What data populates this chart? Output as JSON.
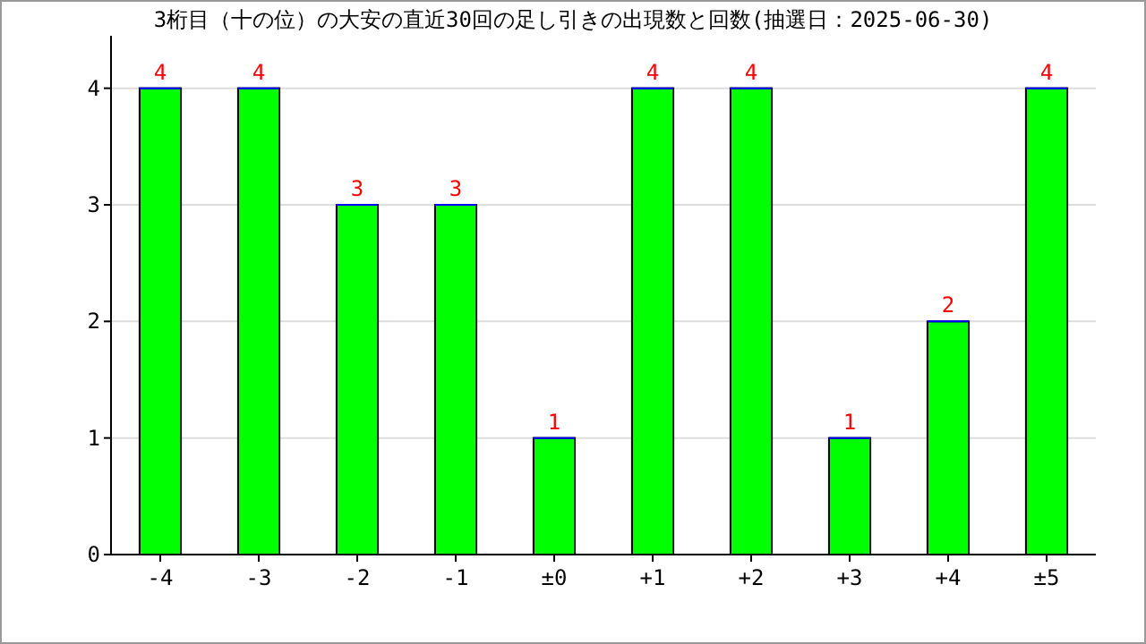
{
  "chart_data": {
    "type": "bar",
    "title": "3桁目（十の位）の大安の直近30回の足し引きの出現数と回数(抽選日：2025-06-30)",
    "categories": [
      "-4",
      "-3",
      "-2",
      "-1",
      "±0",
      "+1",
      "+2",
      "+3",
      "+4",
      "±5"
    ],
    "values": [
      4,
      4,
      3,
      3,
      1,
      4,
      4,
      1,
      2,
      4
    ],
    "color": "#00ff00",
    "ylim": [
      0,
      4.45
    ],
    "yticks": [
      0,
      1,
      2,
      3,
      4
    ],
    "grid": "y",
    "data_labels": true
  }
}
